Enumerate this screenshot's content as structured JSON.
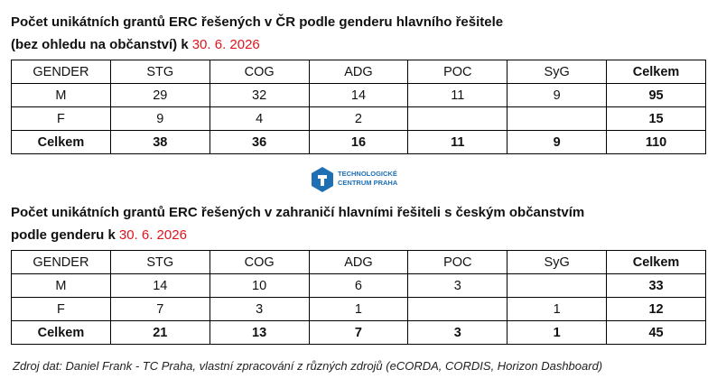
{
  "tables": [
    {
      "title": [
        "Počet unikátních grantů ERC řešených v ČR podle genderu hlavního řešitele",
        "(bez ohledu na občanství) k"
      ],
      "date": "30. 6. 2026",
      "header": [
        "GENDER",
        "STG",
        "COG",
        "ADG",
        "POC",
        "SyG",
        "Celkem"
      ],
      "rows": [
        [
          "M",
          29,
          32,
          14,
          11,
          9,
          95
        ],
        [
          "F",
          9,
          4,
          2,
          null,
          null,
          15
        ],
        [
          "Celkem",
          38,
          36,
          16,
          11,
          9,
          110
        ]
      ]
    },
    {
      "title": [
        "Počet unikátních grantů ERC řešených v zahraničí hlavními řešiteli s českým občanstvím",
        "podle genderu k"
      ],
      "date": "30. 6. 2026",
      "header": [
        "GENDER",
        "STG",
        "COG",
        "ADG",
        "POC",
        "SyG",
        "Celkem"
      ],
      "rows": [
        [
          "M",
          14,
          10,
          6,
          3,
          null,
          33
        ],
        [
          "F",
          7,
          3,
          1,
          null,
          1,
          12
        ],
        [
          "Celkem",
          21,
          13,
          7,
          3,
          1,
          45
        ]
      ]
    }
  ],
  "logo": [
    "TECHNOLOGICKÉ",
    "CENTRUM PRAHA"
  ],
  "source": "Zdroj dat: Daniel Frank - TC Praha, vlastní zpracování z různých zdrojů (eCORDA, CORDIS, Horizon Dashboard)"
}
